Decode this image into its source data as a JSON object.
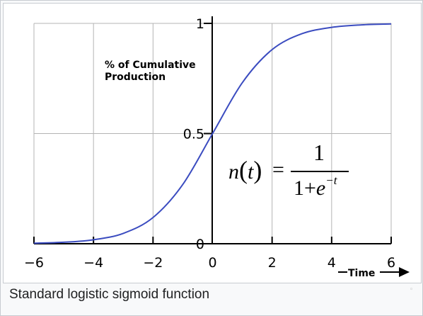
{
  "caption": "Standard logistic sigmoid function",
  "chart_data": {
    "type": "line",
    "title": "",
    "ylabel": "% of Cumulative Production",
    "xlabel": "Time",
    "xlim": [
      -6,
      6
    ],
    "ylim": [
      0,
      1
    ],
    "x_ticks": [
      "−6",
      "−4",
      "−2",
      "0",
      "2",
      "4",
      "6"
    ],
    "y_ticks": [
      "0",
      "0.5",
      "1"
    ],
    "grid": true,
    "line_color": "#3b4cc0",
    "series": [
      {
        "x": [
          -6,
          -5,
          -4,
          -3,
          -2,
          -1,
          0,
          1,
          2,
          3,
          4,
          5,
          6
        ],
        "y": [
          0.0025,
          0.0067,
          0.018,
          0.047,
          0.119,
          0.269,
          0.5,
          0.731,
          0.881,
          0.953,
          0.982,
          0.9933,
          0.9975
        ]
      }
    ],
    "formula": {
      "lhs": "n",
      "var": "t",
      "eq": "=",
      "numerator": "1",
      "denominator_base": "1+",
      "exp_base": "e",
      "exponent": "−t"
    }
  },
  "corner_mark": "◦"
}
